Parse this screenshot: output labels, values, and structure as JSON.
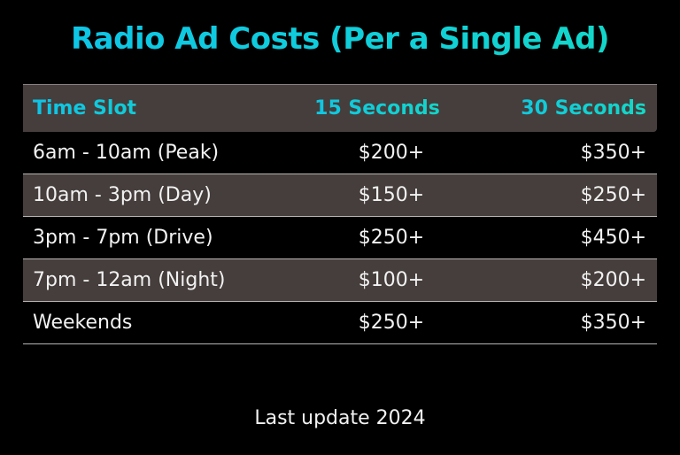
{
  "title": "Radio Ad Costs (Per a Single Ad)",
  "table": {
    "headers": [
      "Time Slot",
      "15 Seconds",
      "30 Seconds"
    ],
    "rows": [
      {
        "slot": "6am - 10am (Peak)",
        "s15": "$200+",
        "s30": "$350+"
      },
      {
        "slot": "10am - 3pm (Day)",
        "s15": "$150+",
        "s30": "$250+"
      },
      {
        "slot": "3pm - 7pm (Drive)",
        "s15": "$250+",
        "s30": "$450+"
      },
      {
        "slot": "7pm - 12am (Night)",
        "s15": "$100+",
        "s30": "$200+"
      },
      {
        "slot": "Weekends",
        "s15": "$250+",
        "s30": "$350+"
      }
    ]
  },
  "footer": "Last update 2024",
  "colors": {
    "background": "#000000",
    "accent": "#10cbe0",
    "header_bg": "#453e3c",
    "shaded_row_bg": "#453e3c",
    "text": "#f2f2f2"
  },
  "chart_data": {
    "type": "table",
    "title": "Radio Ad Costs (Per a Single Ad)",
    "columns": [
      "Time Slot",
      "15 Seconds",
      "30 Seconds"
    ],
    "categories": [
      "6am - 10am (Peak)",
      "10am - 3pm (Day)",
      "3pm - 7pm (Drive)",
      "7pm - 12am (Night)",
      "Weekends"
    ],
    "series": [
      {
        "name": "15 Seconds",
        "values": [
          200,
          150,
          250,
          100,
          250
        ],
        "labels": [
          "$200+",
          "$150+",
          "$250+",
          "$100+",
          "$250+"
        ]
      },
      {
        "name": "30 Seconds",
        "values": [
          350,
          250,
          450,
          200,
          350
        ],
        "labels": [
          "$350+",
          "$250+",
          "$450+",
          "$200+",
          "$350+"
        ]
      }
    ],
    "annotations": [
      "Last update 2024"
    ]
  }
}
